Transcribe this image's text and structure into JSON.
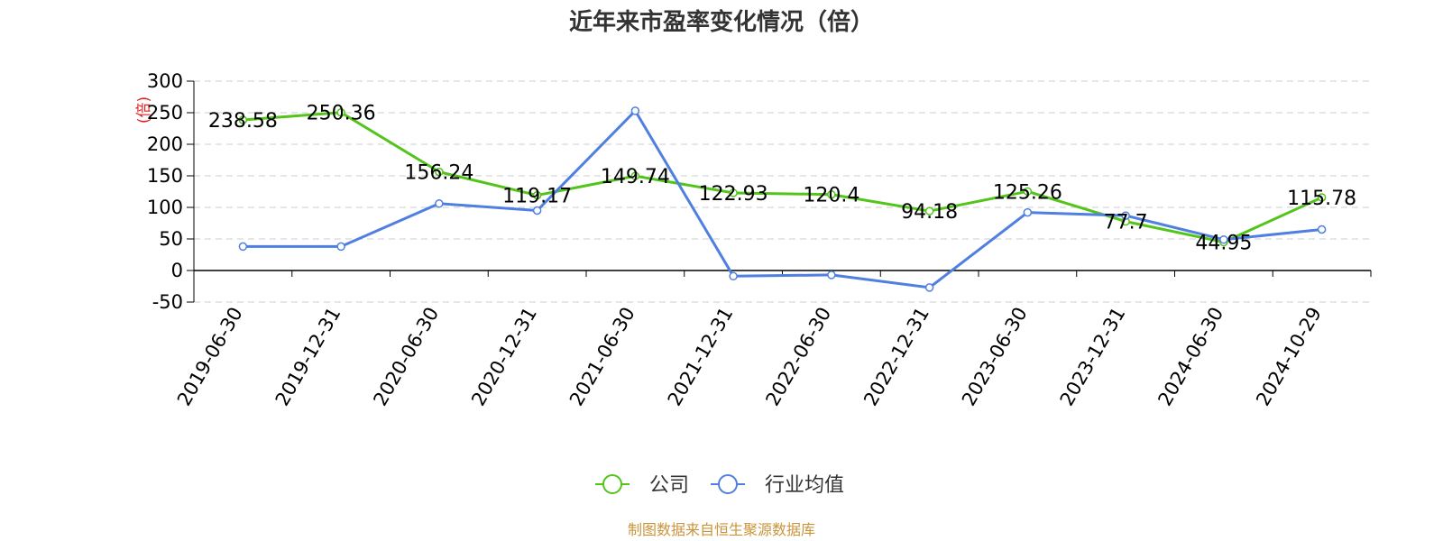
{
  "chart_data": {
    "type": "line",
    "title": "近年来市盈率变化情况（倍）",
    "y_unit": "(倍)",
    "categories": [
      "2019-06-30",
      "2019-12-31",
      "2020-06-30",
      "2020-12-31",
      "2021-06-30",
      "2021-12-31",
      "2022-06-30",
      "2022-12-31",
      "2023-06-30",
      "2023-12-31",
      "2024-06-30",
      "2024-10-29"
    ],
    "ylim": [
      -50,
      300
    ],
    "yticks": [
      300,
      250,
      200,
      150,
      100,
      50,
      0,
      -50
    ],
    "grid": true,
    "legend_position": "bottom",
    "series": [
      {
        "name": "公司",
        "color": "#52c41a",
        "values": [
          238.58,
          250.36,
          156.24,
          119.17,
          149.74,
          122.93,
          120.4,
          94.18,
          125.26,
          77.7,
          44.95,
          115.78
        ],
        "labels": [
          "238.58",
          "250.36",
          "156.24",
          "119.17",
          "149.74",
          "122.93",
          "120.4",
          "94.18",
          "125.26",
          "77.7",
          "44.95",
          "115.78"
        ]
      },
      {
        "name": "行业均值",
        "color": "#4f7fe0",
        "values": [
          38,
          38,
          106,
          95,
          253,
          -9,
          -7,
          -27,
          92,
          87,
          49,
          65
        ]
      }
    ]
  },
  "source_text": "制图数据来自恒生聚源数据库",
  "colors": {
    "unit_label": "#e02020",
    "source_text": "#c8953a",
    "axis": "#000000",
    "grid": "#cccccc"
  }
}
